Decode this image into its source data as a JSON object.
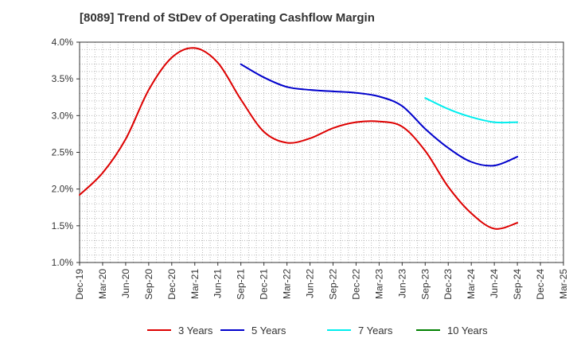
{
  "chart_data": {
    "type": "line",
    "title": "[8089]  Trend of StDev of Operating Cashflow Margin",
    "xlabel": "",
    "ylabel": "",
    "x_ticks": [
      "Dec-19",
      "Mar-20",
      "Jun-20",
      "Sep-20",
      "Dec-20",
      "Mar-21",
      "Jun-21",
      "Sep-21",
      "Dec-21",
      "Mar-22",
      "Jun-22",
      "Sep-22",
      "Dec-22",
      "Mar-23",
      "Jun-23",
      "Sep-23",
      "Dec-23",
      "Mar-24",
      "Jun-24",
      "Sep-24",
      "Dec-24",
      "Mar-25"
    ],
    "y_ticks": [
      "1.0%",
      "1.5%",
      "2.0%",
      "2.5%",
      "3.0%",
      "3.5%",
      "4.0%"
    ],
    "ylim": [
      1.0,
      4.0
    ],
    "grid": true,
    "legend_position": "bottom",
    "series": [
      {
        "name": "3 Years",
        "color": "#dd0000",
        "points": [
          [
            "Dec-19",
            1.92
          ],
          [
            "Mar-20",
            2.22
          ],
          [
            "Jun-20",
            2.68
          ],
          [
            "Sep-20",
            3.35
          ],
          [
            "Dec-20",
            3.79
          ],
          [
            "Mar-21",
            3.92
          ],
          [
            "Jun-21",
            3.72
          ],
          [
            "Sep-21",
            3.22
          ],
          [
            "Dec-21",
            2.78
          ],
          [
            "Mar-22",
            2.63
          ],
          [
            "Jun-22",
            2.69
          ],
          [
            "Sep-22",
            2.83
          ],
          [
            "Dec-22",
            2.91
          ],
          [
            "Mar-23",
            2.92
          ],
          [
            "Jun-23",
            2.85
          ],
          [
            "Sep-23",
            2.52
          ],
          [
            "Dec-23",
            2.03
          ],
          [
            "Mar-24",
            1.67
          ],
          [
            "Jun-24",
            1.46
          ],
          [
            "Sep-24",
            1.54
          ]
        ]
      },
      {
        "name": "5 Years",
        "color": "#0000cc",
        "points": [
          [
            "Sep-21",
            3.7
          ],
          [
            "Dec-21",
            3.52
          ],
          [
            "Mar-22",
            3.39
          ],
          [
            "Jun-22",
            3.35
          ],
          [
            "Sep-22",
            3.33
          ],
          [
            "Dec-22",
            3.31
          ],
          [
            "Mar-23",
            3.26
          ],
          [
            "Jun-23",
            3.13
          ],
          [
            "Sep-23",
            2.82
          ],
          [
            "Dec-23",
            2.56
          ],
          [
            "Mar-24",
            2.37
          ],
          [
            "Jun-24",
            2.32
          ],
          [
            "Sep-24",
            2.44
          ]
        ]
      },
      {
        "name": "7 Years",
        "color": "#00eeee",
        "points": [
          [
            "Sep-23",
            3.24
          ],
          [
            "Dec-23",
            3.09
          ],
          [
            "Mar-24",
            2.98
          ],
          [
            "Jun-24",
            2.91
          ],
          [
            "Sep-24",
            2.91
          ]
        ]
      },
      {
        "name": "10 Years",
        "color": "#008000",
        "points": []
      }
    ]
  }
}
